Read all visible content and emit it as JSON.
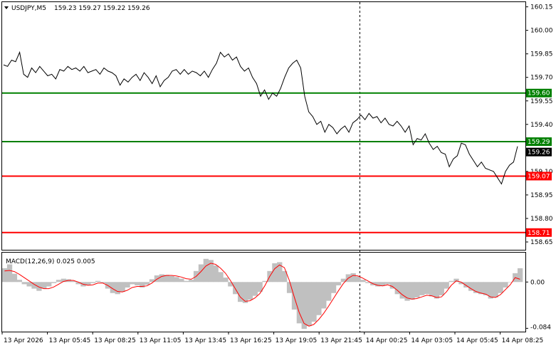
{
  "header": {
    "symbol": "USDJPY,M5",
    "ohlc": "159.23 159.27 159.22 159.26"
  },
  "macd_label": "MACD(12,26,9) 0.025 0.005",
  "colors": {
    "price_line": "#000000",
    "support_green": "#008000",
    "resistance_red": "#ff0000",
    "histogram": "#c0c0c0",
    "signal_line": "#ff0000",
    "current_price_bg": "#000000"
  },
  "chart_data": [
    {
      "type": "line",
      "y_ticks": [
        "160.15",
        "160.00",
        "159.85",
        "159.70",
        "159.55",
        "159.40",
        "159.10",
        "158.95",
        "158.80",
        "158.65"
      ],
      "ylim": [
        158.6,
        160.18
      ],
      "series": [
        {
          "values": [
            159.78,
            159.77,
            159.81,
            159.8,
            159.86,
            159.72,
            159.7,
            159.76,
            159.73,
            159.77,
            159.74,
            159.71,
            159.72,
            159.69,
            159.75,
            159.74,
            159.77,
            159.75,
            159.76,
            159.74,
            159.77,
            159.73,
            159.74,
            159.75,
            159.72,
            159.76,
            159.74,
            159.73,
            159.71,
            159.65,
            159.69,
            159.67,
            159.7,
            159.72,
            159.68,
            159.73,
            159.7,
            159.66,
            159.71,
            159.64,
            159.68,
            159.7,
            159.74,
            159.75,
            159.72,
            159.75,
            159.72,
            159.74,
            159.73,
            159.71,
            159.74,
            159.7,
            159.75,
            159.79,
            159.86,
            159.83,
            159.85,
            159.81,
            159.83,
            159.77,
            159.74,
            159.76,
            159.7,
            159.66,
            159.58,
            159.62,
            159.56,
            159.6,
            159.58,
            159.63,
            159.7,
            159.76,
            159.79,
            159.81,
            159.76,
            159.58,
            159.48,
            159.45,
            159.4,
            159.42,
            159.35,
            159.4,
            159.38,
            159.34,
            159.37,
            159.39,
            159.35,
            159.41,
            159.43,
            159.46,
            159.43,
            159.47,
            159.44,
            159.45,
            159.41,
            159.44,
            159.4,
            159.39,
            159.42,
            159.39,
            159.35,
            159.39,
            159.27,
            159.31,
            159.3,
            159.34,
            159.28,
            159.24,
            159.26,
            159.22,
            159.21,
            159.13,
            159.18,
            159.2,
            159.28,
            159.27,
            159.21,
            159.17,
            159.13,
            159.16,
            159.12,
            159.11,
            159.1,
            159.06,
            159.02,
            159.1,
            159.14,
            159.16,
            159.26
          ]
        }
      ],
      "levels": [
        {
          "label": "159.60",
          "value": 159.6,
          "kind": "green"
        },
        {
          "label": "159.29",
          "value": 159.29,
          "kind": "green"
        },
        {
          "label": "159.07",
          "value": 159.07,
          "kind": "red"
        },
        {
          "label": "158.71",
          "value": 158.71,
          "kind": "red"
        }
      ],
      "current_price": {
        "label": "159.26",
        "value": 159.26
      }
    },
    {
      "type": "bar",
      "y_ticks": [
        "0.00",
        "-0.084"
      ],
      "ylim": [
        -0.09,
        0.052
      ],
      "zero": 0,
      "histogram": [
        0.025,
        0.032,
        0.015,
        0.004,
        -0.004,
        -0.008,
        -0.012,
        -0.016,
        -0.012,
        -0.008,
        -0.002,
        0.004,
        0.006,
        0.005,
        0.002,
        -0.004,
        -0.008,
        -0.006,
        -0.002,
        0.002,
        -0.002,
        -0.012,
        -0.02,
        -0.022,
        -0.018,
        -0.01,
        -0.004,
        -0.006,
        -0.01,
        -0.005,
        0.005,
        0.012,
        0.014,
        0.013,
        0.011,
        0.009,
        0.006,
        0.002,
        0.004,
        0.02,
        0.032,
        0.042,
        0.04,
        0.03,
        0.018,
        0.008,
        -0.008,
        -0.022,
        -0.036,
        -0.038,
        -0.032,
        -0.025,
        -0.018,
        0.002,
        0.02,
        0.034,
        0.036,
        0.02,
        -0.02,
        -0.05,
        -0.075,
        -0.085,
        -0.08,
        -0.072,
        -0.06,
        -0.048,
        -0.034,
        -0.02,
        -0.006,
        0.006,
        0.014,
        0.016,
        0.01,
        0.004,
        -0.002,
        -0.006,
        -0.008,
        -0.007,
        -0.004,
        -0.012,
        -0.022,
        -0.03,
        -0.034,
        -0.032,
        -0.028,
        -0.024,
        -0.022,
        -0.026,
        -0.03,
        -0.024,
        -0.012,
        0.002,
        0.006,
        -0.004,
        -0.01,
        -0.016,
        -0.02,
        -0.022,
        -0.024,
        -0.03,
        -0.028,
        -0.02,
        -0.01,
        0.0,
        0.016,
        0.025
      ],
      "signal": [
        0.02,
        0.021,
        0.019,
        0.014,
        0.008,
        0.002,
        -0.004,
        -0.009,
        -0.012,
        -0.012,
        -0.009,
        -0.004,
        0.001,
        0.003,
        0.003,
        0.0,
        -0.004,
        -0.006,
        -0.005,
        -0.002,
        -0.002,
        -0.006,
        -0.012,
        -0.017,
        -0.018,
        -0.015,
        -0.01,
        -0.008,
        -0.008,
        -0.007,
        -0.002,
        0.005,
        0.01,
        0.012,
        0.012,
        0.011,
        0.009,
        0.006,
        0.005,
        0.01,
        0.019,
        0.029,
        0.034,
        0.032,
        0.025,
        0.016,
        0.003,
        -0.012,
        -0.027,
        -0.035,
        -0.034,
        -0.029,
        -0.021,
        -0.007,
        0.01,
        0.024,
        0.031,
        0.026,
        0.003,
        -0.027,
        -0.055,
        -0.075,
        -0.08,
        -0.077,
        -0.068,
        -0.057,
        -0.044,
        -0.03,
        -0.016,
        -0.003,
        0.007,
        0.012,
        0.011,
        0.007,
        0.002,
        -0.003,
        -0.006,
        -0.007,
        -0.005,
        -0.008,
        -0.015,
        -0.023,
        -0.029,
        -0.031,
        -0.03,
        -0.027,
        -0.024,
        -0.025,
        -0.028,
        -0.027,
        -0.018,
        -0.006,
        0.002,
        0.0,
        -0.006,
        -0.012,
        -0.017,
        -0.02,
        -0.022,
        -0.027,
        -0.028,
        -0.023,
        -0.014,
        -0.005,
        0.008,
        0.005
      ]
    }
  ],
  "x_ticks": [
    "13 Apr 2026",
    "13 Apr 05:45",
    "13 Apr 08:25",
    "13 Apr 11:05",
    "13 Apr 13:45",
    "13 Apr 16:25",
    "13 Apr 19:05",
    "13 Apr 21:45",
    "14 Apr 00:25",
    "14 Apr 03:05",
    "14 Apr 05:45",
    "14 Apr 08:25"
  ]
}
